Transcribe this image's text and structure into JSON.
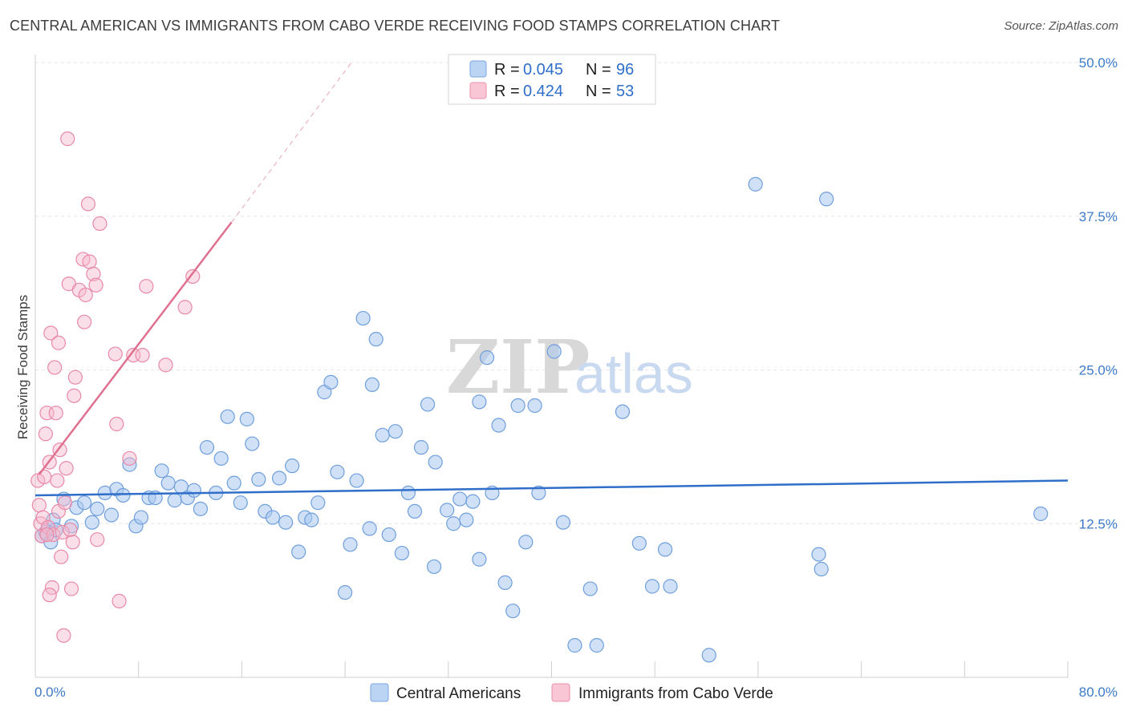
{
  "title": "CENTRAL AMERICAN VS IMMIGRANTS FROM CABO VERDE RECEIVING FOOD STAMPS CORRELATION CHART",
  "source": "Source: ZipAtlas.com",
  "watermark": {
    "zip": "ZIP",
    "atlas": "atlas"
  },
  "colors": {
    "blue_fill": "#a9c8f0",
    "blue_stroke": "#6f9fdc",
    "blue_line": "#2f6fc9",
    "pink_fill": "#f6b8cb",
    "pink_stroke": "#e889a7",
    "pink_line": "#e0708f",
    "accent_text": "#3d7ac8",
    "grid": "#e6e6e6"
  },
  "legend": {
    "rows": [
      {
        "r_label": "R =",
        "r_value": "0.045",
        "n_label": "N =",
        "n_value": "96"
      },
      {
        "r_label": "R =",
        "r_value": "0.424",
        "n_label": "N =",
        "n_value": "53"
      }
    ]
  },
  "bottom_legend": [
    "Central Americans",
    "Immigrants from Cabo Verde"
  ],
  "chart_data": {
    "type": "scatter",
    "title": "CENTRAL AMERICAN VS IMMIGRANTS FROM CABO VERDE RECEIVING FOOD STAMPS CORRELATION CHART",
    "ylabel": "Receiving Food Stamps",
    "xlabel": "",
    "xlim": [
      0,
      80
    ],
    "ylim": [
      0,
      50
    ],
    "x_tick_labels": [
      "0.0%",
      "80.0%"
    ],
    "y_ticks": [
      12.5,
      25.0,
      37.5,
      50.0
    ],
    "y_tick_labels": [
      "12.5%",
      "25.0%",
      "37.5%",
      "50.0%"
    ],
    "grid": true,
    "legend_position": "top-center",
    "series": [
      {
        "name": "Central Americans",
        "r": 0.045,
        "n": 96,
        "trend": {
          "x": [
            0,
            80
          ],
          "y": [
            14.8,
            16.0
          ]
        },
        "points": [
          [
            0.5,
            11.5
          ],
          [
            0.8,
            11.8
          ],
          [
            1.0,
            12.2
          ],
          [
            1.2,
            11.0
          ],
          [
            1.4,
            12.8
          ],
          [
            1.6,
            12.0
          ],
          [
            2.2,
            14.5
          ],
          [
            2.8,
            12.3
          ],
          [
            3.2,
            13.8
          ],
          [
            3.8,
            14.2
          ],
          [
            4.4,
            12.6
          ],
          [
            4.8,
            13.7
          ],
          [
            5.4,
            15.0
          ],
          [
            5.9,
            13.2
          ],
          [
            6.3,
            15.3
          ],
          [
            6.8,
            14.8
          ],
          [
            7.3,
            17.3
          ],
          [
            7.8,
            12.3
          ],
          [
            8.2,
            13.0
          ],
          [
            8.8,
            14.6
          ],
          [
            9.3,
            14.6
          ],
          [
            9.8,
            16.8
          ],
          [
            10.3,
            15.8
          ],
          [
            10.8,
            14.4
          ],
          [
            11.3,
            15.5
          ],
          [
            11.8,
            14.6
          ],
          [
            12.3,
            15.2
          ],
          [
            12.8,
            13.7
          ],
          [
            13.3,
            18.7
          ],
          [
            14.0,
            15.0
          ],
          [
            14.4,
            17.8
          ],
          [
            14.9,
            21.2
          ],
          [
            15.4,
            15.8
          ],
          [
            15.9,
            14.2
          ],
          [
            16.4,
            21.0
          ],
          [
            16.8,
            19.0
          ],
          [
            17.3,
            16.1
          ],
          [
            17.8,
            13.5
          ],
          [
            18.4,
            13.0
          ],
          [
            18.9,
            16.2
          ],
          [
            19.4,
            12.6
          ],
          [
            19.9,
            17.2
          ],
          [
            20.4,
            10.2
          ],
          [
            20.9,
            13.0
          ],
          [
            21.4,
            12.8
          ],
          [
            21.9,
            14.2
          ],
          [
            22.4,
            23.2
          ],
          [
            22.9,
            24.0
          ],
          [
            23.4,
            16.7
          ],
          [
            24.0,
            6.9
          ],
          [
            24.4,
            10.8
          ],
          [
            24.9,
            16.0
          ],
          [
            25.4,
            29.2
          ],
          [
            25.9,
            12.1
          ],
          [
            26.1,
            23.8
          ],
          [
            26.4,
            27.5
          ],
          [
            26.9,
            19.7
          ],
          [
            27.4,
            11.6
          ],
          [
            27.9,
            20.0
          ],
          [
            28.4,
            10.1
          ],
          [
            28.9,
            15.0
          ],
          [
            29.4,
            13.5
          ],
          [
            29.9,
            18.7
          ],
          [
            30.4,
            22.2
          ],
          [
            30.9,
            9.0
          ],
          [
            31.0,
            17.5
          ],
          [
            31.9,
            13.6
          ],
          [
            32.4,
            12.5
          ],
          [
            32.9,
            14.5
          ],
          [
            33.4,
            12.8
          ],
          [
            33.9,
            14.3
          ],
          [
            34.4,
            22.4
          ],
          [
            34.4,
            9.6
          ],
          [
            35.0,
            26.0
          ],
          [
            35.4,
            15.0
          ],
          [
            35.9,
            20.5
          ],
          [
            36.4,
            7.7
          ],
          [
            37.0,
            5.4
          ],
          [
            37.4,
            22.1
          ],
          [
            38.0,
            11.0
          ],
          [
            39.0,
            15.0
          ],
          [
            38.7,
            22.1
          ],
          [
            40.2,
            26.5
          ],
          [
            40.9,
            12.6
          ],
          [
            41.8,
            2.6
          ],
          [
            43.0,
            7.2
          ],
          [
            43.5,
            2.6
          ],
          [
            45.5,
            21.6
          ],
          [
            46.8,
            10.9
          ],
          [
            47.8,
            7.4
          ],
          [
            49.2,
            7.4
          ],
          [
            48.8,
            10.4
          ],
          [
            52.2,
            1.8
          ],
          [
            55.8,
            40.1
          ],
          [
            60.7,
            10.0
          ],
          [
            60.9,
            8.8
          ],
          [
            61.3,
            38.9
          ],
          [
            77.9,
            13.3
          ]
        ]
      },
      {
        "name": "Immigrants from Cabo Verde",
        "r": 0.424,
        "n": 53,
        "trend": {
          "x": [
            0.3,
            15.2
          ],
          "y": [
            16.5,
            37.0
          ]
        },
        "trend_extension": {
          "x": [
            15.2,
            24.5
          ],
          "y": [
            37.0,
            50.0
          ]
        },
        "points": [
          [
            0.2,
            16.0
          ],
          [
            0.3,
            14.0
          ],
          [
            0.4,
            12.5
          ],
          [
            0.5,
            11.5
          ],
          [
            0.6,
            13.0
          ],
          [
            0.7,
            16.3
          ],
          [
            0.8,
            19.8
          ],
          [
            0.9,
            21.5
          ],
          [
            1.0,
            12.2
          ],
          [
            1.1,
            17.5
          ],
          [
            1.2,
            28.0
          ],
          [
            1.3,
            7.3
          ],
          [
            1.4,
            11.6
          ],
          [
            1.5,
            25.2
          ],
          [
            1.6,
            21.5
          ],
          [
            1.7,
            16.0
          ],
          [
            1.8,
            13.5
          ],
          [
            1.9,
            18.5
          ],
          [
            1.8,
            27.2
          ],
          [
            2.0,
            9.8
          ],
          [
            2.1,
            11.8
          ],
          [
            2.2,
            3.4
          ],
          [
            2.3,
            14.2
          ],
          [
            2.4,
            17.0
          ],
          [
            2.5,
            43.8
          ],
          [
            2.6,
            32.0
          ],
          [
            2.7,
            12.0
          ],
          [
            2.8,
            7.2
          ],
          [
            2.9,
            11.0
          ],
          [
            3.0,
            22.9
          ],
          [
            3.1,
            24.4
          ],
          [
            3.4,
            31.5
          ],
          [
            3.7,
            34.0
          ],
          [
            3.8,
            28.9
          ],
          [
            3.9,
            31.1
          ],
          [
            4.1,
            38.5
          ],
          [
            4.2,
            33.8
          ],
          [
            4.5,
            32.8
          ],
          [
            4.7,
            31.9
          ],
          [
            4.8,
            11.2
          ],
          [
            5.0,
            36.9
          ],
          [
            6.2,
            26.3
          ],
          [
            6.3,
            20.6
          ],
          [
            6.5,
            6.2
          ],
          [
            7.3,
            17.8
          ],
          [
            7.6,
            26.2
          ],
          [
            8.3,
            26.2
          ],
          [
            8.6,
            31.8
          ],
          [
            10.1,
            25.4
          ],
          [
            11.6,
            30.1
          ],
          [
            12.2,
            32.6
          ],
          [
            1.1,
            6.7
          ],
          [
            0.9,
            11.6
          ]
        ]
      }
    ]
  }
}
